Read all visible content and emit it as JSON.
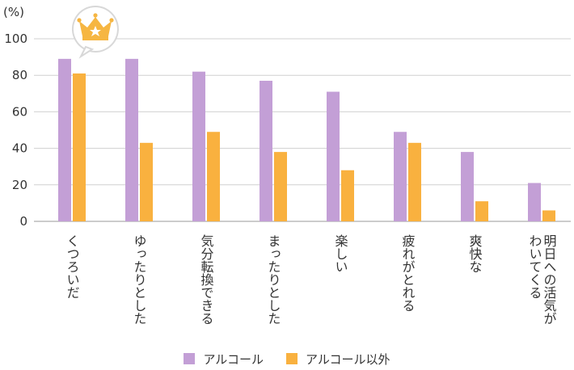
{
  "chart_data": {
    "type": "bar",
    "unit": "(%)",
    "ylim": [
      0,
      100
    ],
    "yticks": [
      0,
      20,
      40,
      60,
      80,
      100
    ],
    "grid": true,
    "categories": [
      "くつろいだ",
      "ゆったりとした",
      "気分転換できる",
      "まったりとした",
      "楽しい",
      "疲れがとれる",
      "爽快な",
      [
        "明日への活気が",
        "わいてくる"
      ]
    ],
    "series": [
      {
        "name": "アルコール",
        "color": "#c39fd6",
        "values": [
          89,
          89,
          82,
          77,
          71,
          49,
          38,
          21
        ]
      },
      {
        "name": "アルコール以外",
        "color": "#f9b13f",
        "values": [
          81,
          43,
          49,
          38,
          28,
          43,
          11,
          6
        ]
      }
    ],
    "legend_position": "bottom",
    "crown_icon": "crown-icon"
  }
}
